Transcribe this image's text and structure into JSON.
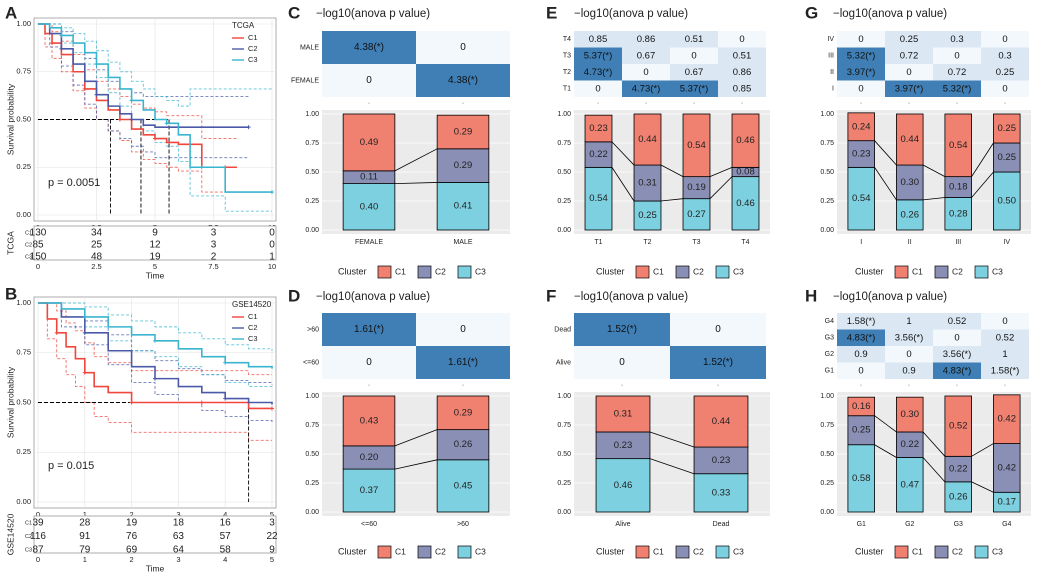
{
  "colors": {
    "c1": "#f08070",
    "c2": "#8a8fb5",
    "c3": "#7dd0e0",
    "heat_hi": "#3f7fb5",
    "heat_mid": "#dbe8f4",
    "heat_lo": "#f3f8fc",
    "km_c1": "#f0463c",
    "km_c2": "#4a5aa8",
    "km_c3": "#3ab5d0",
    "panel_bg": "#ebebeb"
  },
  "legend": {
    "title": "Cluster",
    "items": [
      "C1",
      "C2",
      "C3"
    ]
  },
  "chart_data": [
    {
      "id": "A",
      "type": "line",
      "label": "A",
      "legend_title": "TCGA",
      "series_names": [
        "C1",
        "C2",
        "C3"
      ],
      "xlabel": "Time",
      "ylabel": "Survival probability",
      "xlim": [
        0,
        10
      ],
      "ylim": [
        0,
        1
      ],
      "xticks": [
        "0",
        "2.5",
        "5",
        "7.5",
        "10"
      ],
      "xtick_values": [
        0,
        2.5,
        5,
        7.5,
        10
      ],
      "yticks": [
        "0.00",
        "0.25",
        "0.50",
        "0.75",
        "1.00"
      ],
      "pvalue": "p = 0.0051",
      "median_times": [
        3.1,
        4.4,
        5.6
      ],
      "series": [
        {
          "name": "C1",
          "x": [
            0,
            0.3,
            0.6,
            1,
            1.5,
            2,
            2.5,
            3,
            3.5,
            4,
            4.5,
            5,
            5.5,
            6,
            6.5,
            7,
            7.5,
            8,
            8.5
          ],
          "y": [
            1,
            0.95,
            0.9,
            0.84,
            0.75,
            0.66,
            0.6,
            0.55,
            0.5,
            0.45,
            0.42,
            0.4,
            0.38,
            0.37,
            0.37,
            0.25,
            0.25,
            0.25,
            0.25
          ],
          "upper": [
            1,
            1,
            0.96,
            0.91,
            0.84,
            0.76,
            0.7,
            0.66,
            0.62,
            0.58,
            0.56,
            0.54,
            0.52,
            0.52,
            0.52,
            0.4,
            0.4,
            0.4,
            0.4
          ],
          "lower": [
            1,
            0.88,
            0.82,
            0.75,
            0.65,
            0.56,
            0.5,
            0.44,
            0.39,
            0.33,
            0.29,
            0.27,
            0.25,
            0.23,
            0.23,
            0.12,
            0.12,
            0.12,
            0.12
          ]
        },
        {
          "name": "C2",
          "x": [
            0,
            0.5,
            1,
            1.5,
            2,
            2.5,
            3,
            3.5,
            4,
            4.5,
            5,
            6,
            7,
            8,
            9
          ],
          "y": [
            1,
            0.95,
            0.87,
            0.79,
            0.7,
            0.63,
            0.57,
            0.53,
            0.5,
            0.47,
            0.46,
            0.46,
            0.46,
            0.46,
            0.46
          ],
          "upper": [
            1,
            1,
            0.96,
            0.9,
            0.82,
            0.76,
            0.7,
            0.66,
            0.64,
            0.62,
            0.62,
            0.62,
            0.62,
            0.62,
            0.62
          ],
          "lower": [
            1,
            0.88,
            0.78,
            0.68,
            0.58,
            0.5,
            0.44,
            0.4,
            0.36,
            0.33,
            0.3,
            0.3,
            0.3,
            0.3,
            0.3
          ]
        },
        {
          "name": "C3",
          "x": [
            0,
            0.5,
            1,
            1.5,
            2,
            2.5,
            3,
            3.5,
            4,
            4.5,
            5,
            5.5,
            6,
            6.5,
            7,
            8,
            9,
            10
          ],
          "y": [
            1,
            0.98,
            0.94,
            0.9,
            0.85,
            0.79,
            0.72,
            0.66,
            0.6,
            0.55,
            0.5,
            0.48,
            0.42,
            0.25,
            0.25,
            0.12,
            0.12,
            0.12
          ],
          "upper": [
            1,
            1,
            0.98,
            0.95,
            0.91,
            0.86,
            0.8,
            0.75,
            0.7,
            0.66,
            0.62,
            0.6,
            0.57,
            0.66,
            0.66,
            0.66,
            0.66,
            0.66
          ],
          "lower": [
            1,
            0.95,
            0.9,
            0.85,
            0.79,
            0.72,
            0.64,
            0.57,
            0.5,
            0.44,
            0.38,
            0.36,
            0.28,
            0.1,
            0.1,
            0.02,
            0.02,
            0.02
          ]
        }
      ],
      "risk_label": "TCGA",
      "risk_table": [
        {
          "name": "C1",
          "values": [
            "130",
            "34",
            "9",
            "3",
            "0"
          ]
        },
        {
          "name": "C2",
          "values": [
            "85",
            "25",
            "12",
            "3",
            "0"
          ]
        },
        {
          "name": "C3",
          "values": [
            "150",
            "48",
            "19",
            "2",
            "1"
          ]
        }
      ]
    },
    {
      "id": "B",
      "type": "line",
      "label": "B",
      "legend_title": "GSE14520",
      "series_names": [
        "C1",
        "C2",
        "C3"
      ],
      "xlabel": "Time",
      "ylabel": "Survival probability",
      "xlim": [
        0,
        5
      ],
      "ylim": [
        0,
        1
      ],
      "xticks": [
        "0",
        "1",
        "2",
        "3",
        "4",
        "5"
      ],
      "xtick_values": [
        0,
        1,
        2,
        3,
        4,
        5
      ],
      "yticks": [
        "0.00",
        "0.25",
        "0.50",
        "0.75",
        "1.00"
      ],
      "pvalue": "p = 0.015",
      "median_times": [
        4.5
      ],
      "series": [
        {
          "name": "C1",
          "x": [
            0,
            0.2,
            0.4,
            0.6,
            0.8,
            1,
            1.2,
            1.5,
            2,
            2.5,
            3,
            3.5,
            4,
            4.5,
            5
          ],
          "y": [
            1,
            0.92,
            0.85,
            0.78,
            0.72,
            0.65,
            0.58,
            0.55,
            0.5,
            0.5,
            0.5,
            0.5,
            0.5,
            0.47,
            0.47
          ],
          "upper": [
            1,
            1,
            0.96,
            0.9,
            0.86,
            0.8,
            0.73,
            0.7,
            0.66,
            0.66,
            0.66,
            0.66,
            0.66,
            0.64,
            0.64
          ],
          "lower": [
            1,
            0.82,
            0.72,
            0.64,
            0.58,
            0.5,
            0.43,
            0.4,
            0.35,
            0.35,
            0.35,
            0.35,
            0.35,
            0.31,
            0.31
          ]
        },
        {
          "name": "C2",
          "x": [
            0,
            0.5,
            1,
            1.5,
            2,
            2.5,
            3,
            3.5,
            4,
            4.5,
            5
          ],
          "y": [
            1,
            0.93,
            0.85,
            0.76,
            0.68,
            0.62,
            0.58,
            0.55,
            0.52,
            0.5,
            0.49
          ],
          "upper": [
            1,
            0.97,
            0.91,
            0.84,
            0.76,
            0.71,
            0.67,
            0.64,
            0.61,
            0.6,
            0.59
          ],
          "lower": [
            1,
            0.88,
            0.79,
            0.69,
            0.6,
            0.54,
            0.5,
            0.46,
            0.43,
            0.41,
            0.4
          ]
        },
        {
          "name": "C3",
          "x": [
            0,
            0.5,
            1,
            1.5,
            2,
            2.5,
            3,
            3.5,
            4,
            4.5,
            5
          ],
          "y": [
            1,
            0.97,
            0.93,
            0.88,
            0.84,
            0.81,
            0.77,
            0.73,
            0.7,
            0.68,
            0.67
          ],
          "upper": [
            1,
            1,
            0.98,
            0.94,
            0.91,
            0.88,
            0.85,
            0.82,
            0.79,
            0.77,
            0.76
          ],
          "lower": [
            1,
            0.93,
            0.88,
            0.81,
            0.76,
            0.73,
            0.68,
            0.64,
            0.6,
            0.58,
            0.57
          ]
        }
      ],
      "risk_label": "GSE14520",
      "risk_table": [
        {
          "name": "C1",
          "values": [
            "39",
            "28",
            "19",
            "18",
            "16",
            "3"
          ]
        },
        {
          "name": "C2",
          "values": [
            "116",
            "91",
            "76",
            "63",
            "57",
            "22"
          ]
        },
        {
          "name": "C3",
          "values": [
            "87",
            "79",
            "69",
            "64",
            "58",
            "9"
          ]
        }
      ]
    },
    {
      "id": "C",
      "type": "heatmap",
      "label": "C",
      "title": "−log10(anova p value)",
      "categories": [
        "FEMALE",
        "MALE"
      ],
      "heat_rows": [
        "MALE",
        "FEMALE"
      ],
      "heat_cells": [
        [
          "4.38(*)",
          "0"
        ],
        [
          "0",
          "4.38(*)"
        ]
      ],
      "heat_levels": [
        [
          2,
          0
        ],
        [
          0,
          2
        ]
      ],
      "stack_series": [
        {
          "name": "C3",
          "values": [
            0.4,
            0.41
          ]
        },
        {
          "name": "C2",
          "values": [
            0.11,
            0.29
          ]
        },
        {
          "name": "C1",
          "values": [
            0.49,
            0.29
          ]
        }
      ],
      "yticks": [
        "0.00",
        "0.25",
        "0.50",
        "0.75",
        "1.00"
      ]
    },
    {
      "id": "D",
      "type": "heatmap",
      "label": "D",
      "title": "−log10(anova p value)",
      "categories": [
        "<=60",
        ">60"
      ],
      "heat_rows": [
        ">60",
        "<=60"
      ],
      "heat_cells": [
        [
          "1.61(*)",
          "0"
        ],
        [
          "0",
          "1.61(*)"
        ]
      ],
      "heat_levels": [
        [
          2,
          0
        ],
        [
          0,
          2
        ]
      ],
      "stack_series": [
        {
          "name": "C3",
          "values": [
            0.37,
            0.45
          ]
        },
        {
          "name": "C2",
          "values": [
            0.2,
            0.26
          ]
        },
        {
          "name": "C1",
          "values": [
            0.43,
            0.29
          ]
        }
      ],
      "yticks": [
        "0.00",
        "0.25",
        "0.50",
        "0.75",
        "1.00"
      ]
    },
    {
      "id": "E",
      "type": "heatmap",
      "label": "E",
      "title": "−log10(anova p value)",
      "categories": [
        "T1",
        "T2",
        "T3",
        "T4"
      ],
      "heat_rows": [
        "T4",
        "T3",
        "T2",
        "T1"
      ],
      "heat_cells": [
        [
          "0.85",
          "0.86",
          "0.51",
          "0"
        ],
        [
          "5.37(*)",
          "0.67",
          "0",
          "0.51"
        ],
        [
          "4.73(*)",
          "0",
          "0.67",
          "0.86"
        ],
        [
          "0",
          "4.73(*)",
          "5.37(*)",
          "0.85"
        ]
      ],
      "heat_levels": [
        [
          1,
          1,
          1,
          0
        ],
        [
          2,
          1,
          0,
          1
        ],
        [
          2,
          0,
          1,
          1
        ],
        [
          0,
          2,
          2,
          1
        ]
      ],
      "stack_series": [
        {
          "name": "C3",
          "values": [
            0.54,
            0.25,
            0.27,
            0.46
          ]
        },
        {
          "name": "C2",
          "values": [
            0.22,
            0.31,
            0.19,
            0.08
          ]
        },
        {
          "name": "C1",
          "values": [
            0.23,
            0.44,
            0.54,
            0.46
          ]
        }
      ],
      "yticks": [
        "0.00",
        "0.25",
        "0.50",
        "0.75",
        "1.00"
      ]
    },
    {
      "id": "F",
      "type": "heatmap",
      "label": "F",
      "title": "−log10(anova p value)",
      "categories": [
        "Alive",
        "Dead"
      ],
      "heat_rows": [
        "Dead",
        "Alive"
      ],
      "heat_cells": [
        [
          "1.52(*)",
          "0"
        ],
        [
          "0",
          "1.52(*)"
        ]
      ],
      "heat_levels": [
        [
          2,
          0
        ],
        [
          0,
          2
        ]
      ],
      "stack_series": [
        {
          "name": "C3",
          "values": [
            0.46,
            0.33
          ]
        },
        {
          "name": "C2",
          "values": [
            0.23,
            0.23
          ]
        },
        {
          "name": "C1",
          "values": [
            0.31,
            0.44
          ]
        }
      ],
      "yticks": [
        "0.00",
        "0.25",
        "0.50",
        "0.75",
        "1.00"
      ]
    },
    {
      "id": "G",
      "type": "heatmap",
      "label": "G",
      "title": "−log10(anova p value)",
      "categories": [
        "I",
        "II",
        "III",
        "IV"
      ],
      "heat_rows": [
        "IV",
        "III",
        "II",
        "I"
      ],
      "heat_cells": [
        [
          "0",
          "0.25",
          "0.3",
          "0"
        ],
        [
          "5.32(*)",
          "0.72",
          "0",
          "0.3"
        ],
        [
          "3.97(*)",
          "0",
          "0.72",
          "0.25"
        ],
        [
          "0",
          "3.97(*)",
          "5.32(*)",
          "0"
        ]
      ],
      "heat_levels": [
        [
          0,
          1,
          1,
          0
        ],
        [
          2,
          1,
          0,
          1
        ],
        [
          2,
          0,
          1,
          1
        ],
        [
          0,
          2,
          2,
          0
        ]
      ],
      "stack_series": [
        {
          "name": "C3",
          "values": [
            0.54,
            0.26,
            0.28,
            0.5
          ]
        },
        {
          "name": "C2",
          "values": [
            0.23,
            0.3,
            0.18,
            0.25
          ]
        },
        {
          "name": "C1",
          "values": [
            0.24,
            0.44,
            0.54,
            0.25
          ]
        }
      ],
      "yticks": [
        "0.00",
        "0.25",
        "0.50",
        "0.75",
        "1.00"
      ]
    },
    {
      "id": "H",
      "type": "heatmap",
      "label": "H",
      "title": "−log10(anova p value)",
      "categories": [
        "G1",
        "G2",
        "G3",
        "G4"
      ],
      "heat_rows": [
        "G4",
        "G3",
        "G2",
        "G1"
      ],
      "heat_cells": [
        [
          "1.58(*)",
          "1",
          "0.52",
          "0"
        ],
        [
          "4.83(*)",
          "3.56(*)",
          "0",
          "0.52"
        ],
        [
          "0.9",
          "0",
          "3.56(*)",
          "1"
        ],
        [
          "0",
          "0.9",
          "4.83(*)",
          "1.58(*)"
        ]
      ],
      "heat_levels": [
        [
          1,
          1,
          1,
          0
        ],
        [
          2,
          1,
          0,
          1
        ],
        [
          1,
          0,
          1,
          1
        ],
        [
          0,
          1,
          2,
          1
        ]
      ],
      "stack_series": [
        {
          "name": "C3",
          "values": [
            0.58,
            0.47,
            0.26,
            0.17
          ]
        },
        {
          "name": "C2",
          "values": [
            0.25,
            0.22,
            0.22,
            0.42
          ]
        },
        {
          "name": "C1",
          "values": [
            0.16,
            0.3,
            0.52,
            0.42
          ]
        }
      ],
      "yticks": [
        "0.00",
        "0.25",
        "0.50",
        "0.75",
        "1.00"
      ]
    }
  ]
}
